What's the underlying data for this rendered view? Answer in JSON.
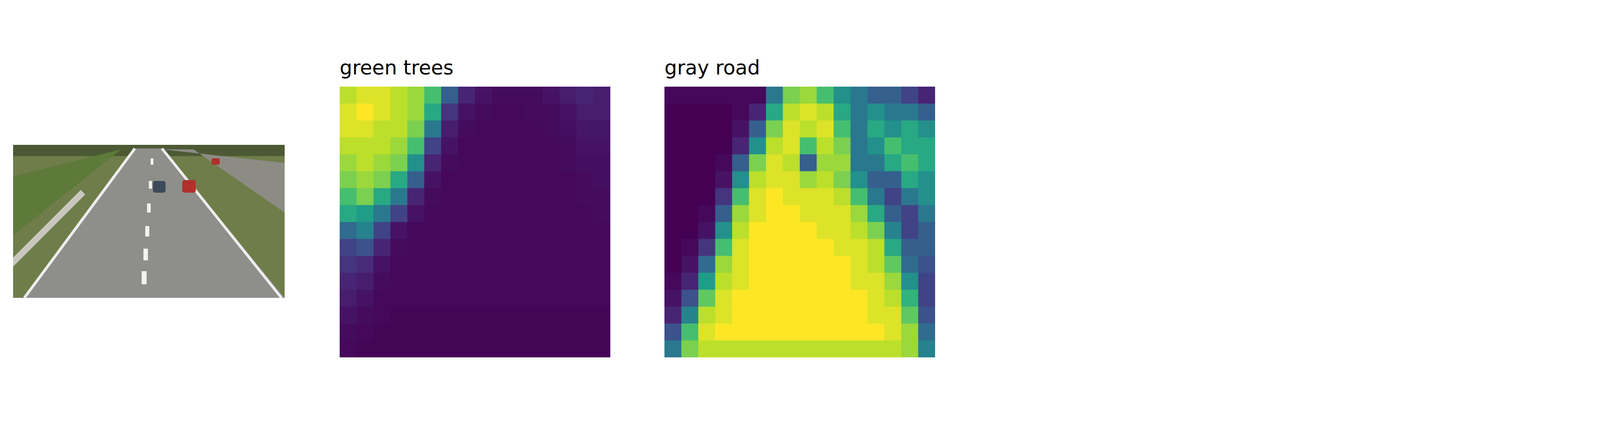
{
  "chart_data": [
    {
      "type": "heatmap",
      "title": "green trees",
      "zlim": [
        0,
        1
      ],
      "tick_labels": false,
      "cells": [
        [
          0.9,
          0.95,
          0.95,
          0.9,
          0.85,
          0.7,
          0.3,
          0.1,
          0.05,
          0.03,
          0.03,
          0.03,
          0.05,
          0.08,
          0.1,
          0.08
        ],
        [
          0.95,
          1,
          0.95,
          0.9,
          0.85,
          0.6,
          0.15,
          0.05,
          0.03,
          0.02,
          0.02,
          0.03,
          0.03,
          0.05,
          0.08,
          0.08
        ],
        [
          0.95,
          0.95,
          0.9,
          0.9,
          0.8,
          0.4,
          0.08,
          0.03,
          0.02,
          0.02,
          0.02,
          0.02,
          0.03,
          0.04,
          0.06,
          0.06
        ],
        [
          0.9,
          0.9,
          0.9,
          0.85,
          0.7,
          0.2,
          0.05,
          0.02,
          0.02,
          0.02,
          0.02,
          0.02,
          0.02,
          0.03,
          0.05,
          0.05
        ],
        [
          0.85,
          0.9,
          0.85,
          0.8,
          0.5,
          0.1,
          0.03,
          0.02,
          0.02,
          0.02,
          0.02,
          0.02,
          0.02,
          0.03,
          0.04,
          0.04
        ],
        [
          0.8,
          0.85,
          0.8,
          0.6,
          0.3,
          0.05,
          0.02,
          0.02,
          0.02,
          0.02,
          0.02,
          0.02,
          0.02,
          0.02,
          0.03,
          0.04
        ],
        [
          0.7,
          0.8,
          0.6,
          0.4,
          0.1,
          0.03,
          0.02,
          0.02,
          0.02,
          0.02,
          0.02,
          0.02,
          0.02,
          0.02,
          0.03,
          0.03
        ],
        [
          0.6,
          0.55,
          0.4,
          0.2,
          0.05,
          0.02,
          0.02,
          0.02,
          0.02,
          0.02,
          0.02,
          0.02,
          0.02,
          0.02,
          0.02,
          0.03
        ],
        [
          0.35,
          0.45,
          0.2,
          0.05,
          0.02,
          0.02,
          0.02,
          0.02,
          0.02,
          0.02,
          0.02,
          0.02,
          0.02,
          0.02,
          0.02,
          0.02
        ],
        [
          0.2,
          0.25,
          0.1,
          0.03,
          0.02,
          0.02,
          0.02,
          0.02,
          0.02,
          0.02,
          0.02,
          0.02,
          0.02,
          0.02,
          0.02,
          0.02
        ],
        [
          0.15,
          0.12,
          0.05,
          0.02,
          0.02,
          0.02,
          0.02,
          0.02,
          0.02,
          0.02,
          0.02,
          0.02,
          0.02,
          0.02,
          0.02,
          0.02
        ],
        [
          0.1,
          0.08,
          0.03,
          0.02,
          0.02,
          0.02,
          0.02,
          0.02,
          0.02,
          0.02,
          0.02,
          0.02,
          0.02,
          0.02,
          0.02,
          0.02
        ],
        [
          0.08,
          0.05,
          0.02,
          0.02,
          0.02,
          0.02,
          0.02,
          0.02,
          0.02,
          0.02,
          0.02,
          0.02,
          0.02,
          0.02,
          0.02,
          0.02
        ],
        [
          0.05,
          0.03,
          0.02,
          0.01,
          0.01,
          0.01,
          0.01,
          0.01,
          0.01,
          0.01,
          0.01,
          0.01,
          0.01,
          0.01,
          0.01,
          0.01
        ],
        [
          0.03,
          0.02,
          0.01,
          0.01,
          0.01,
          0.01,
          0.01,
          0.01,
          0.01,
          0.01,
          0.01,
          0.01,
          0.01,
          0.01,
          0.01,
          0.01
        ],
        [
          0.02,
          0.01,
          0.01,
          0.01,
          0.01,
          0.01,
          0.01,
          0.01,
          0.01,
          0.01,
          0.01,
          0.01,
          0.01,
          0.01,
          0.01,
          0.01
        ]
      ]
    },
    {
      "type": "heatmap",
      "title": "gray road",
      "zlim": [
        0,
        1
      ],
      "tick_labels": false,
      "cells": [
        [
          0.02,
          0.02,
          0.02,
          0.02,
          0.02,
          0.02,
          0.4,
          0.8,
          0.85,
          0.7,
          0.5,
          0.4,
          0.3,
          0.3,
          0.2,
          0.1
        ],
        [
          0,
          0,
          0,
          0,
          0.02,
          0.1,
          0.6,
          0.9,
          0.95,
          0.9,
          0.6,
          0.4,
          0.5,
          0.4,
          0.4,
          0.3
        ],
        [
          0,
          0,
          0,
          0,
          0.05,
          0.3,
          0.8,
          0.95,
          0.9,
          0.95,
          0.7,
          0.4,
          0.6,
          0.5,
          0.6,
          0.5
        ],
        [
          0,
          0,
          0,
          0,
          0.1,
          0.5,
          0.9,
          0.95,
          0.7,
          0.9,
          0.8,
          0.4,
          0.5,
          0.7,
          0.6,
          0.6
        ],
        [
          0,
          0,
          0,
          0.02,
          0.3,
          0.8,
          0.95,
          0.9,
          0.3,
          0.85,
          0.85,
          0.4,
          0.4,
          0.6,
          0.7,
          0.6
        ],
        [
          0,
          0,
          0,
          0.05,
          0.5,
          0.9,
          0.95,
          0.95,
          0.85,
          0.9,
          0.8,
          0.5,
          0.3,
          0.3,
          0.6,
          0.5
        ],
        [
          0,
          0,
          0,
          0.15,
          0.7,
          0.95,
          1,
          0.95,
          0.95,
          0.95,
          0.9,
          0.7,
          0.4,
          0.2,
          0.4,
          0.5
        ],
        [
          0,
          0,
          0.02,
          0.3,
          0.85,
          0.95,
          1,
          1,
          0.95,
          0.95,
          0.95,
          0.85,
          0.6,
          0.3,
          0.2,
          0.4
        ],
        [
          0,
          0,
          0.05,
          0.5,
          0.9,
          1,
          1,
          1,
          1,
          0.95,
          0.95,
          0.9,
          0.8,
          0.45,
          0.2,
          0.3
        ],
        [
          0,
          0.02,
          0.15,
          0.7,
          0.95,
          1,
          1,
          1,
          1,
          1,
          0.95,
          0.95,
          0.9,
          0.6,
          0.3,
          0.3
        ],
        [
          0,
          0.05,
          0.35,
          0.85,
          0.95,
          1,
          1,
          1,
          1,
          1,
          1,
          0.95,
          0.9,
          0.75,
          0.35,
          0.25
        ],
        [
          0.02,
          0.1,
          0.55,
          0.9,
          0.95,
          1,
          1,
          1,
          1,
          1,
          1,
          0.95,
          0.95,
          0.85,
          0.5,
          0.2
        ],
        [
          0.05,
          0.25,
          0.75,
          0.95,
          1,
          1,
          1,
          1,
          1,
          1,
          1,
          1,
          0.95,
          0.9,
          0.65,
          0.2
        ],
        [
          0.1,
          0.45,
          0.9,
          0.95,
          1,
          1,
          1,
          1,
          1,
          1,
          1,
          1,
          0.95,
          0.95,
          0.75,
          0.25
        ],
        [
          0.25,
          0.7,
          0.95,
          1,
          1,
          1,
          1,
          1,
          1,
          1,
          1,
          1,
          1,
          0.95,
          0.85,
          0.35
        ],
        [
          0.4,
          0.8,
          0.9,
          0.9,
          0.9,
          0.9,
          0.9,
          0.9,
          0.9,
          0.9,
          0.9,
          0.9,
          0.9,
          0.9,
          0.85,
          0.45
        ]
      ]
    }
  ]
}
